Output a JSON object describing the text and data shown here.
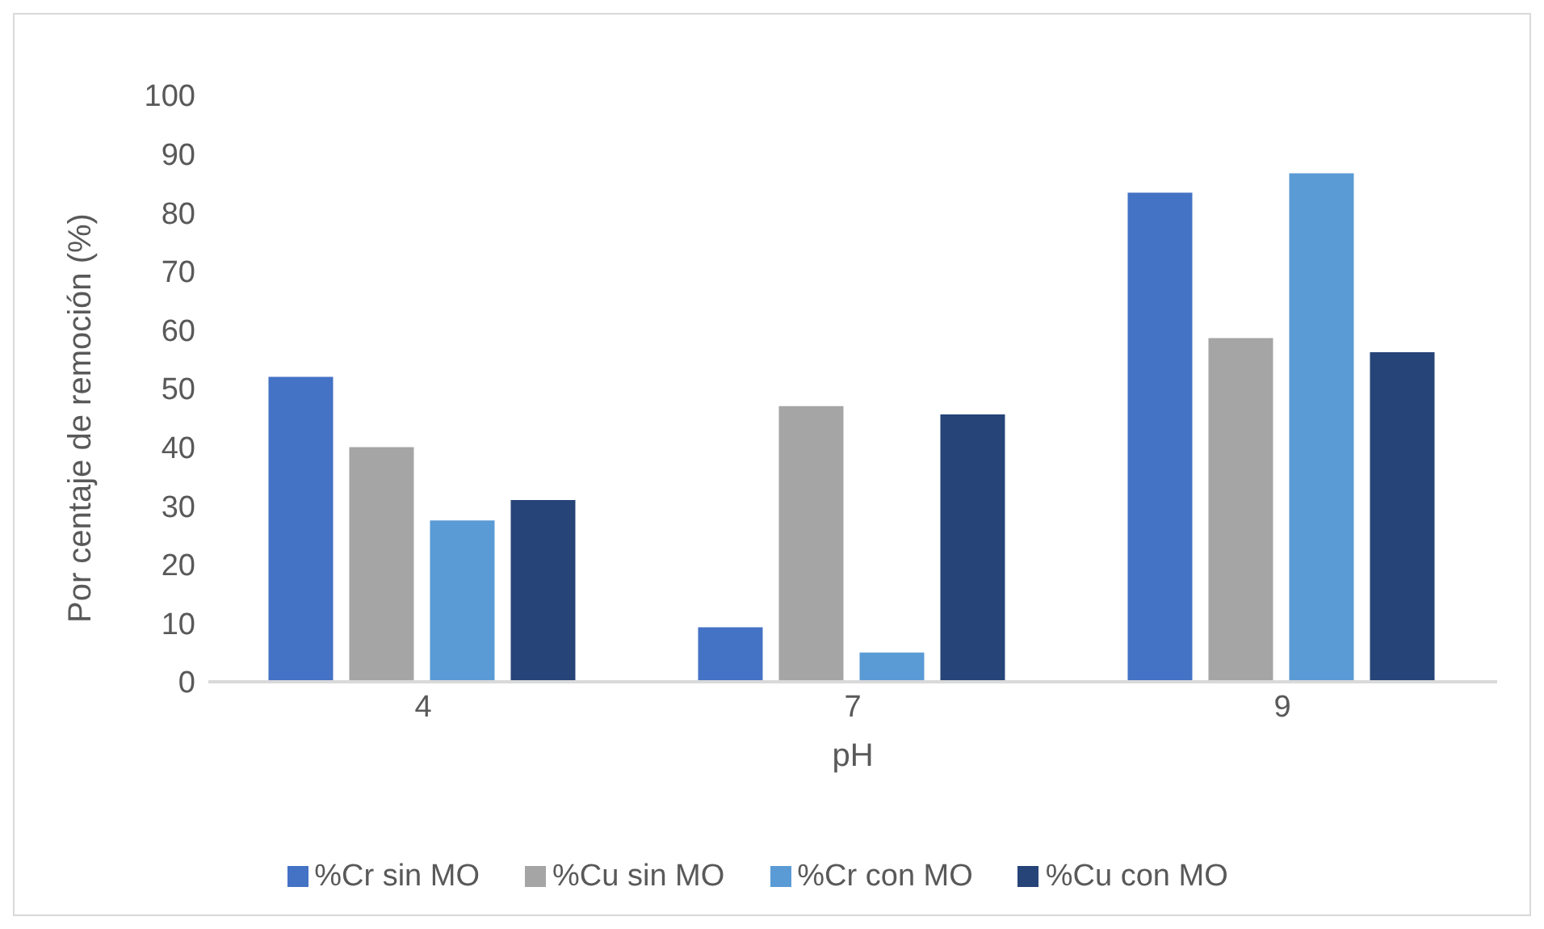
{
  "chart_data": {
    "type": "bar",
    "xlabel": "pH",
    "ylabel": "Por centaje de remoción (%)",
    "categories": [
      "4",
      "7",
      "9"
    ],
    "series": [
      {
        "name": "%Cr sin MO",
        "color": "#4472c4",
        "values": [
          52,
          9.3,
          83.4
        ]
      },
      {
        "name": "%Cu sin MO",
        "color": "#a5a5a5",
        "values": [
          40,
          47,
          58.6
        ]
      },
      {
        "name": "%Cr con MO",
        "color": "#5b9bd5",
        "values": [
          27.5,
          5,
          86.7
        ]
      },
      {
        "name": "%Cu con MO",
        "color": "#264478",
        "values": [
          31,
          45.6,
          56.2
        ]
      }
    ],
    "ylim": [
      0,
      100
    ],
    "yticks": [
      0,
      10,
      20,
      30,
      40,
      50,
      60,
      70,
      80,
      90,
      100
    ],
    "grid": false,
    "legend": "bottom"
  }
}
